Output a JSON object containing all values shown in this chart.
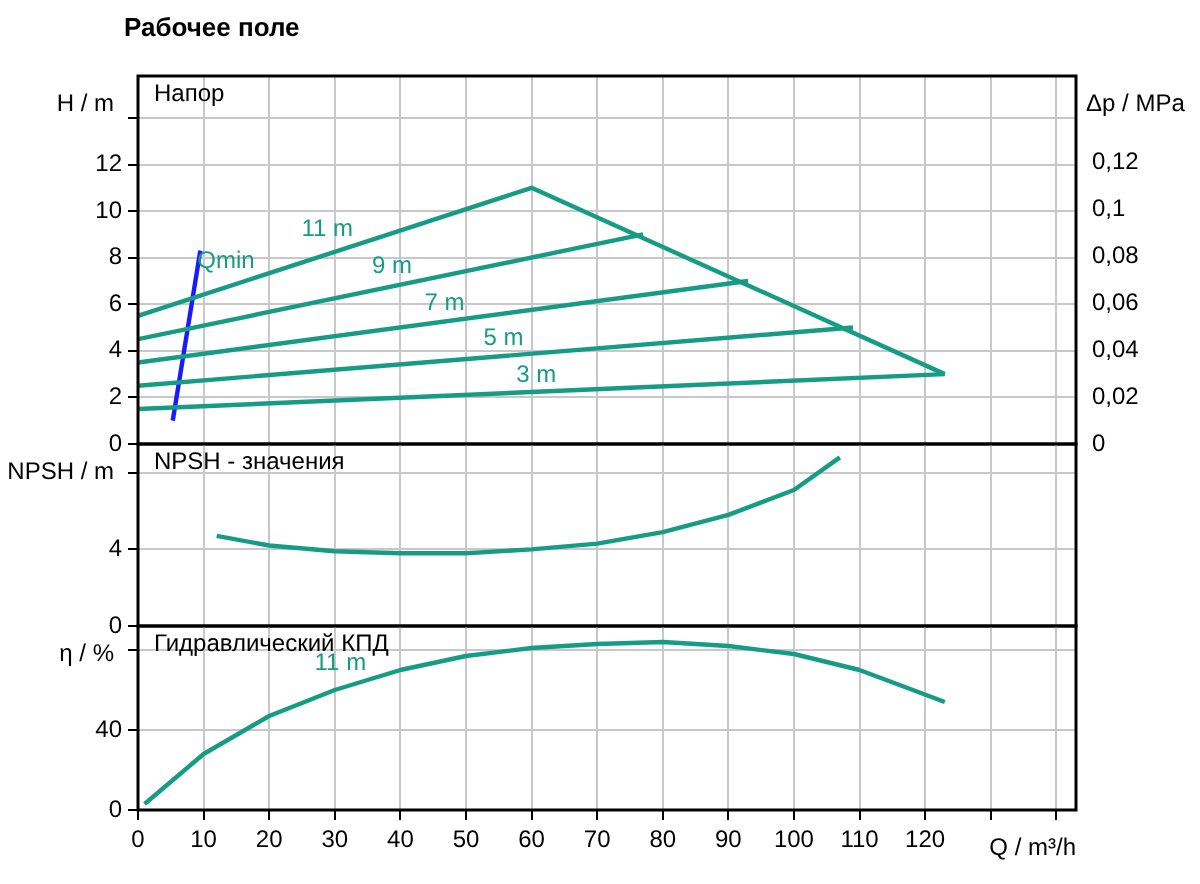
{
  "chart_data": [
    {
      "type": "line",
      "title": "Рабочее поле",
      "ylabel": "H / m",
      "y2label": "Δp / MPa",
      "annotations": [
        "Напор",
        {
          "text": "11 m",
          "x": 34,
          "y": 8.6
        },
        {
          "text": "9 m",
          "x": 43,
          "y": 7.0
        },
        {
          "text": "7 m",
          "x": 51,
          "y": 5.4
        },
        {
          "text": "5 m",
          "x": 60,
          "y": 3.9
        },
        {
          "text": "3 m",
          "x": 65,
          "y": 2.3
        },
        {
          "text": "Qmin",
          "x": 19,
          "y": 7.2
        }
      ],
      "series": [
        {
          "color": "#169c84",
          "x": [
            0,
            60,
            123
          ],
          "values": [
            5.5,
            11,
            3
          ]
        },
        {
          "color": "#169c84",
          "x": [
            0,
            77
          ],
          "values": [
            4.5,
            9.0
          ]
        },
        {
          "color": "#169c84",
          "x": [
            0,
            93
          ],
          "values": [
            3.5,
            7.0
          ]
        },
        {
          "color": "#169c84",
          "x": [
            0,
            109
          ],
          "values": [
            2.5,
            5.0
          ]
        },
        {
          "color": "#169c84",
          "x": [
            0,
            123
          ],
          "values": [
            1.5,
            3.0
          ]
        },
        {
          "color": "#1a1aff",
          "x": [
            5.3,
            9.5
          ],
          "values": [
            1.0,
            8.3
          ]
        }
      ],
      "xlim": [
        0,
        143
      ],
      "xticks": [
        0,
        10,
        20,
        30,
        40,
        50,
        60,
        70,
        80,
        90,
        100,
        110,
        120,
        130,
        140
      ],
      "ylim": [
        0,
        15.8
      ],
      "yticks": [
        0,
        2,
        4,
        6,
        8,
        10,
        12,
        {
          "value": 14,
          "label": null
        }
      ],
      "y2lim": [
        0,
        0.157
      ],
      "y2ticks": [
        {
          "value": 0,
          "label": "0"
        },
        {
          "value": 0.02,
          "label": "0,02"
        },
        {
          "value": 0.04,
          "label": "0,04"
        },
        {
          "value": 0.06,
          "label": "0,06"
        },
        {
          "value": 0.08,
          "label": "0,08"
        },
        {
          "value": 0.1,
          "label": "0,1"
        },
        {
          "value": 0.12,
          "label": "0,12"
        },
        {
          "value": 0.14,
          "label": null
        }
      ],
      "grid": true,
      "tick_labels": "y"
    },
    {
      "type": "line",
      "ylabel": "NPSH / m",
      "annotations": [
        "NPSH - значения"
      ],
      "series": [
        {
          "color": "#169c84",
          "x": [
            12,
            20,
            30,
            40,
            50,
            60,
            70,
            80,
            90,
            100,
            107
          ],
          "values": [
            4.7,
            4.2,
            3.9,
            3.8,
            3.8,
            4.0,
            4.3,
            4.9,
            5.8,
            7.1,
            8.8
          ]
        }
      ],
      "xlim": [
        0,
        143
      ],
      "xticks": [
        0,
        10,
        20,
        30,
        40,
        50,
        60,
        70,
        80,
        90,
        100,
        110,
        120,
        130,
        140
      ],
      "ylim": [
        0,
        9.5
      ],
      "yticks": [
        0,
        4,
        {
          "value": 8,
          "label": null
        }
      ],
      "grid": true,
      "tick_labels": "y"
    },
    {
      "type": "line",
      "ylabel": "η / %",
      "xlabel": "Q / m³/h",
      "annotations": [
        "Гидравлический КПД",
        {
          "text": "11 m",
          "x": 36,
          "y": 66
        }
      ],
      "series": [
        {
          "color": "#169c84",
          "x": [
            1,
            10,
            20,
            30,
            40,
            50,
            60,
            70,
            80,
            90,
            100,
            110,
            123
          ],
          "values": [
            3,
            28,
            47,
            60,
            70,
            77,
            81,
            83,
            84,
            82,
            78,
            70,
            54
          ]
        }
      ],
      "xlim": [
        0,
        143
      ],
      "xticks": [
        0,
        10,
        20,
        30,
        40,
        50,
        60,
        70,
        80,
        90,
        100,
        110,
        120,
        {
          "value": 130,
          "label": null
        },
        {
          "value": 140,
          "label": null
        }
      ],
      "ylim": [
        0,
        92
      ],
      "yticks": [
        0,
        40,
        {
          "value": 80,
          "label": null
        }
      ],
      "grid": true
    }
  ]
}
